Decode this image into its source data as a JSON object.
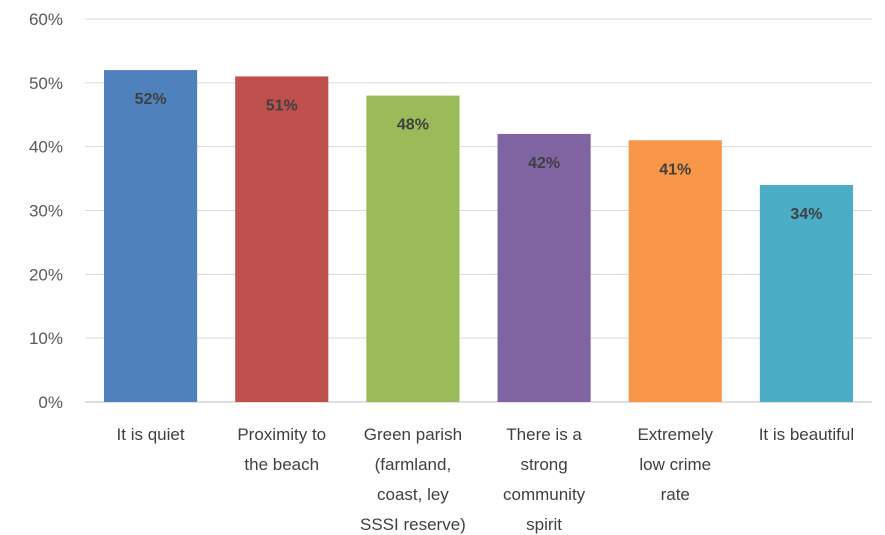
{
  "chart_data": {
    "type": "bar",
    "categories": [
      [
        "It is quiet"
      ],
      [
        "Proximity to",
        "the beach"
      ],
      [
        "Green parish",
        "(farmland,",
        "coast, ley",
        "SSSI reserve)"
      ],
      [
        "There is a",
        "strong",
        "community",
        "spirit"
      ],
      [
        "Extremely",
        "low crime",
        "rate"
      ],
      [
        "It is beautiful"
      ]
    ],
    "values": [
      52,
      51,
      48,
      42,
      41,
      34
    ],
    "data_labels": [
      "52%",
      "51%",
      "48%",
      "42%",
      "41%",
      "34%"
    ],
    "colors": [
      "#4f81bd",
      "#c0504d",
      "#9bbb59",
      "#8064a2",
      "#f79646",
      "#4bacc6"
    ],
    "ylim": [
      0,
      60
    ],
    "yticks": [
      0,
      10,
      20,
      30,
      40,
      50,
      60
    ],
    "ytick_labels": [
      "0%",
      "10%",
      "20%",
      "30%",
      "40%",
      "50%",
      "60%"
    ],
    "grid": true,
    "legend": "none"
  }
}
